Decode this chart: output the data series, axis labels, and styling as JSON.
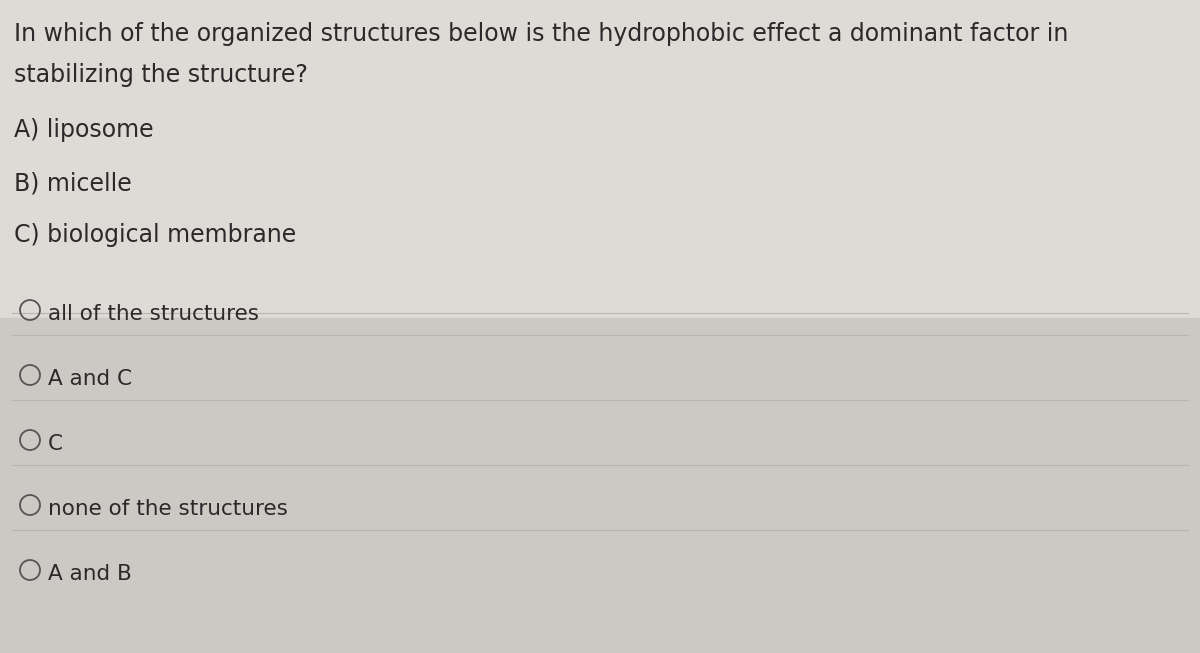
{
  "background_color": "#d8d5d0",
  "upper_bg": "#e8e6e1",
  "lower_bg": "#d0cdc8",
  "question_line1": "In which of the organized structures below is the hydrophobic effect a dominant factor in",
  "question_line2": "stabilizing the structure?",
  "options_top": [
    "A) liposome",
    "B) micelle",
    "C) biological membrane"
  ],
  "answer_choices": [
    "all of the structures",
    "A and C",
    "C",
    "none of the structures",
    "A and B"
  ],
  "text_color": "#2a2a2a",
  "line_color": "#b8b5b0",
  "circle_color": "#555555",
  "font_size_question": 17,
  "font_size_options": 17,
  "font_size_answers": 15.5,
  "fig_width": 12.0,
  "fig_height": 6.53,
  "dpi": 100
}
